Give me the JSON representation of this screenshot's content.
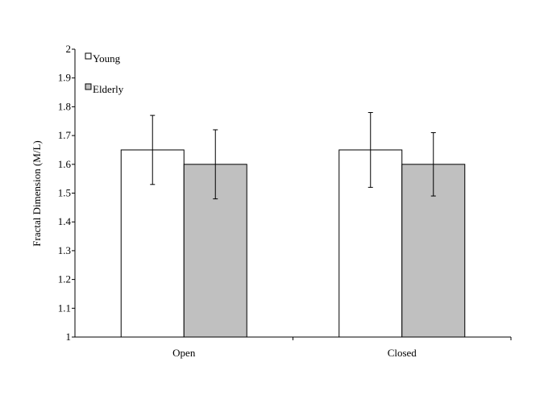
{
  "chart_data": {
    "type": "bar",
    "title": "",
    "xlabel": "",
    "ylabel": "Fractal Dimension (M/L)",
    "categories": [
      "Open",
      "Closed"
    ],
    "ylim": [
      1,
      2
    ],
    "yticks": [
      "1",
      "1.1",
      "1.2",
      "1.3",
      "1.4",
      "1.5",
      "1.6",
      "1.7",
      "1.8",
      "1.9",
      "2"
    ],
    "grid": false,
    "legend_position": "top-left",
    "series": [
      {
        "name": "Young",
        "color": "#ffffff",
        "values": [
          1.65,
          1.65
        ],
        "error_low": [
          1.53,
          1.52
        ],
        "error_high": [
          1.77,
          1.78
        ]
      },
      {
        "name": "Elderly",
        "color": "#c0c0c0",
        "values": [
          1.6,
          1.6
        ],
        "error_low": [
          1.48,
          1.49
        ],
        "error_high": [
          1.72,
          1.71
        ]
      }
    ]
  }
}
